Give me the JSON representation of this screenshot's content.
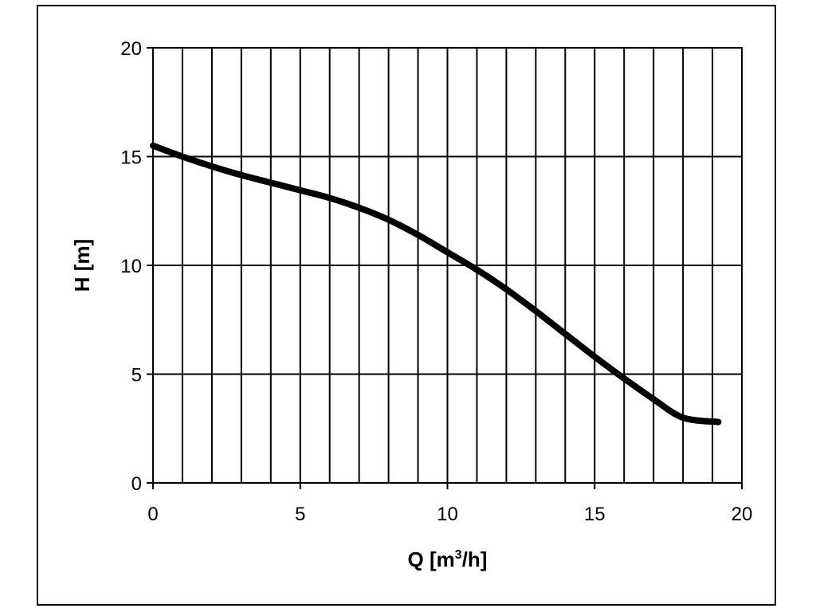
{
  "chart_data": {
    "type": "line",
    "title": "",
    "xlabel": {
      "prefix": "Q [m",
      "superscript": "3",
      "suffix": "/h]"
    },
    "ylabel": "H [m]",
    "xlim": [
      0,
      20
    ],
    "ylim": [
      0,
      20
    ],
    "x_major_ticks": [
      0,
      5,
      10,
      15,
      20
    ],
    "y_major_ticks": [
      0,
      5,
      10,
      15,
      20
    ],
    "x_gridline_step": 1,
    "y_gridline_step": 5,
    "grid": true,
    "legend": "none",
    "colors": {
      "line": "#000000",
      "grid": "#000000",
      "frame": "#000000"
    },
    "series": [
      {
        "x": [
          0,
          1,
          2,
          3,
          4,
          5,
          6,
          7,
          8,
          9,
          10,
          11,
          12,
          13,
          14,
          15,
          16,
          17,
          18,
          19.2
        ],
        "y": [
          15.5,
          15.0,
          14.55,
          14.15,
          13.8,
          13.45,
          13.1,
          12.65,
          12.1,
          11.4,
          10.6,
          9.8,
          8.9,
          7.9,
          6.85,
          5.8,
          4.8,
          3.85,
          3.0,
          2.8
        ]
      }
    ]
  }
}
